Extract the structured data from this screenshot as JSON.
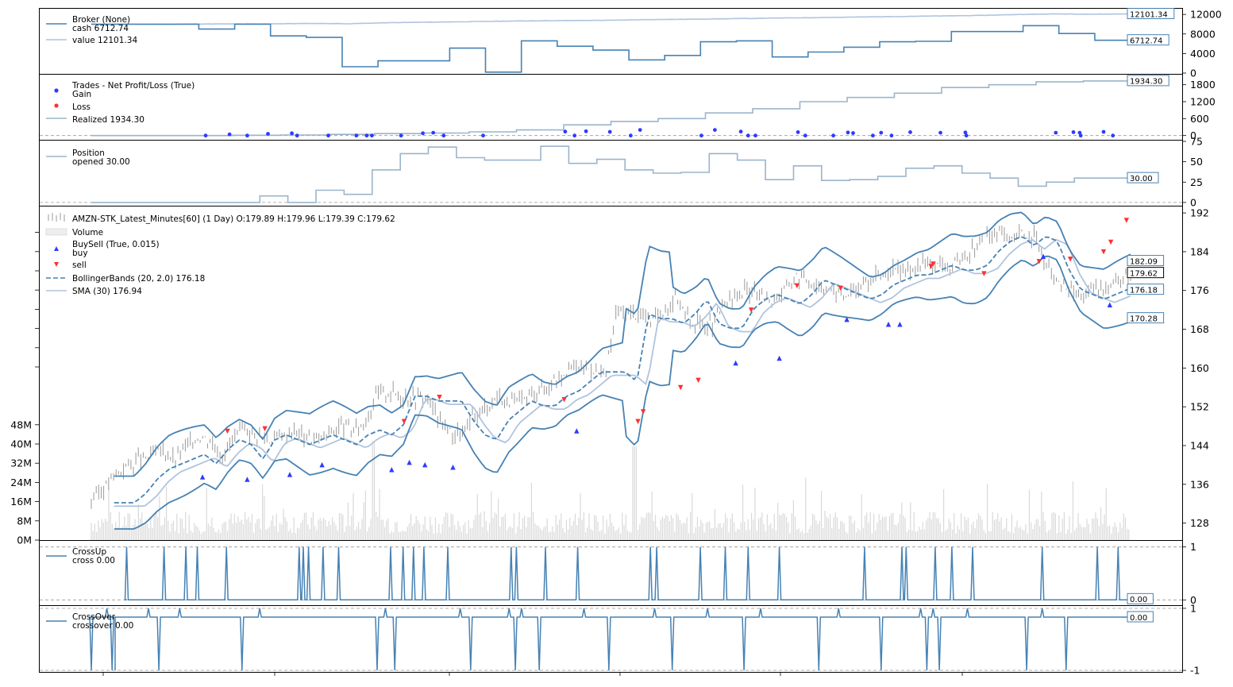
{
  "colors": {
    "cash": "#4682b4",
    "value": "#b0c4de",
    "realized": "#9ab5cc",
    "position": "#9ab5cc",
    "price": "#9a9a9a",
    "volume": "#d9d9d9",
    "bb": "#4682b4",
    "sma": "#b0c4de",
    "buy": "#2e3bff",
    "sell": "#ff3030",
    "gain": "#2e3bff",
    "loss": "#ff3030",
    "cross": "#4682b4",
    "zero_line": "#999999"
  },
  "chart_data": [
    {
      "id": "broker",
      "type": "line",
      "legend": [
        "Broker (None)",
        "cash 6712.74",
        "value 12101.34"
      ],
      "ylim": [
        0,
        13000
      ],
      "yticks": [
        "0",
        "4000",
        "8000",
        "12000"
      ],
      "ytick_values": [
        0,
        4000,
        8000,
        12000
      ],
      "last_labels": [
        "12101.34",
        "6712.74"
      ],
      "series": [
        {
          "name": "value",
          "values": [
            10000,
            10000,
            10000,
            10050,
            10050,
            10100,
            10150,
            10100,
            10300,
            10400,
            10500,
            10600,
            10700,
            10750,
            10800,
            10950,
            11000,
            11100,
            11200,
            11300,
            11400,
            11500,
            11600,
            11700,
            11800,
            12000,
            12100,
            12050,
            12101.34
          ]
        },
        {
          "name": "cash",
          "values": [
            10000,
            10000,
            10000,
            9000,
            10000,
            7600,
            7300,
            1300,
            2500,
            2500,
            5100,
            200,
            6600,
            5500,
            4700,
            2700,
            3600,
            6400,
            6600,
            3300,
            4300,
            5300,
            6400,
            6500,
            8500,
            8500,
            9700,
            8100,
            6712.74
          ]
        }
      ]
    },
    {
      "id": "trades",
      "type": "scatter",
      "legend": [
        "Trades - Net Profit/Loss (True)",
        "Gain",
        "Loss",
        "Realized 1934.30"
      ],
      "ylim": [
        -150,
        2100
      ],
      "yticks": [
        "0",
        "600",
        "1200",
        "1800"
      ],
      "ytick_values": [
        0,
        600,
        1200,
        1800
      ],
      "last_labels": [
        "1934.30"
      ],
      "realized": [
        0,
        0,
        0,
        10,
        20,
        40,
        70,
        90,
        130,
        200,
        380,
        500,
        600,
        800,
        950,
        1200,
        1350,
        1500,
        1700,
        1800,
        1900,
        1934.3
      ],
      "gain_points": [
        [
          0.133,
          40
        ],
        [
          0.17,
          60
        ],
        [
          0.193,
          80
        ],
        [
          0.319,
          80
        ],
        [
          0.329,
          100
        ],
        [
          0.456,
          140
        ],
        [
          0.476,
          150
        ],
        [
          0.499,
          130
        ],
        [
          0.528,
          200
        ],
        [
          0.6,
          200
        ],
        [
          0.625,
          140
        ],
        [
          0.68,
          120
        ],
        [
          0.728,
          110
        ],
        [
          0.733,
          90
        ],
        [
          0.76,
          100
        ],
        [
          0.788,
          120
        ],
        [
          0.817,
          100
        ],
        [
          0.841,
          110
        ],
        [
          0.928,
          100
        ],
        [
          0.945,
          120
        ],
        [
          0.951,
          100
        ],
        [
          0.974,
          130
        ]
      ],
      "loss_points": [
        [
          0.11,
          0
        ],
        [
          0.15,
          0
        ],
        [
          0.198,
          0
        ],
        [
          0.228,
          0
        ],
        [
          0.255,
          0
        ],
        [
          0.265,
          0
        ],
        [
          0.27,
          0
        ],
        [
          0.298,
          0
        ],
        [
          0.339,
          0
        ],
        [
          0.377,
          0
        ],
        [
          0.465,
          0
        ],
        [
          0.519,
          0
        ],
        [
          0.587,
          0
        ],
        [
          0.632,
          0
        ],
        [
          0.639,
          0
        ],
        [
          0.687,
          0
        ],
        [
          0.714,
          0
        ],
        [
          0.752,
          0
        ],
        [
          0.77,
          0
        ],
        [
          0.842,
          0
        ],
        [
          0.952,
          0
        ],
        [
          0.983,
          0
        ]
      ]
    },
    {
      "id": "position",
      "type": "line",
      "legend": [
        "Position",
        "opened 30.00"
      ],
      "ylim": [
        -3,
        75
      ],
      "yticks": [
        "0",
        "25",
        "50",
        "75"
      ],
      "ytick_values": [
        0,
        25,
        50,
        75
      ],
      "last_labels": [
        "30.00"
      ],
      "values": [
        0,
        0,
        0,
        0,
        0,
        0,
        8,
        0,
        15,
        10,
        40,
        60,
        68,
        55,
        52,
        52,
        69,
        48,
        53,
        40,
        36,
        37,
        60,
        52,
        28,
        45,
        27,
        28,
        32,
        42,
        45,
        36,
        30,
        20,
        25,
        30,
        30
      ]
    },
    {
      "id": "price",
      "type": "line",
      "legend": [
        "AMZN-STK_Latest_Minutes[60] (1 Day) O:179.89 H:179.96 L:179.39 C:179.62",
        "Volume",
        "BuySell (True, 0.015)",
        "buy",
        "sell",
        "BollingerBands (20, 2.0) 176.18",
        "SMA (30) 176.94"
      ],
      "ylim": [
        124.5,
        193
      ],
      "yticks": [
        "128",
        "136",
        "144",
        "152",
        "160",
        "168",
        "176",
        "184",
        "192"
      ],
      "ytick_values": [
        128,
        136,
        144,
        152,
        160,
        168,
        176,
        184,
        192
      ],
      "volume_ticks": [
        "0M",
        "8M",
        "16M",
        "24M",
        "32M",
        "40M",
        "48M"
      ],
      "last_labels": [
        "182.09",
        "179.62",
        "176.18",
        "170.28"
      ],
      "close": [
        133,
        135,
        138,
        140,
        141,
        142,
        143,
        141,
        144,
        146,
        145,
        142,
        146,
        147,
        146,
        145,
        146,
        147,
        146,
        145,
        147,
        148,
        147,
        149,
        155,
        155,
        154,
        154,
        154,
        150,
        147,
        146,
        150,
        152,
        154,
        153,
        153,
        155,
        156,
        158,
        160,
        160,
        160,
        158,
        172,
        171,
        171,
        170,
        172,
        175,
        170,
        169,
        169,
        173,
        175,
        176,
        175,
        174,
        176,
        179,
        178,
        177,
        176,
        175,
        176,
        178,
        179,
        180,
        180,
        181,
        182,
        181,
        181,
        182,
        185,
        187,
        188,
        186,
        188,
        187,
        181,
        177,
        176,
        175,
        176,
        177,
        178,
        179.62
      ],
      "buy": [
        [
          0.107,
          137.5
        ],
        [
          0.15,
          137
        ],
        [
          0.191,
          138
        ],
        [
          0.222,
          140
        ],
        [
          0.289,
          139
        ],
        [
          0.306,
          140.5
        ],
        [
          0.321,
          140
        ],
        [
          0.348,
          139.5
        ],
        [
          0.467,
          147
        ],
        [
          0.62,
          161
        ],
        [
          0.662,
          162
        ],
        [
          0.727,
          170
        ],
        [
          0.767,
          169
        ],
        [
          0.778,
          169
        ],
        [
          0.916,
          183
        ],
        [
          0.98,
          173
        ]
      ],
      "sell": [
        [
          0.131,
          147
        ],
        [
          0.167,
          147.5
        ],
        [
          0.301,
          149
        ],
        [
          0.335,
          154
        ],
        [
          0.455,
          153.5
        ],
        [
          0.526,
          149
        ],
        [
          0.531,
          151
        ],
        [
          0.567,
          156
        ],
        [
          0.584,
          157.5
        ],
        [
          0.635,
          172
        ],
        [
          0.679,
          177
        ],
        [
          0.721,
          176.5
        ],
        [
          0.808,
          181
        ],
        [
          0.81,
          181.5
        ],
        [
          0.859,
          179.5
        ],
        [
          0.912,
          182
        ],
        [
          0.942,
          182.5
        ],
        [
          0.974,
          184
        ],
        [
          0.981,
          186
        ],
        [
          0.996,
          190.5
        ]
      ]
    },
    {
      "id": "crossup",
      "type": "line",
      "legend": [
        "CrossUp",
        "cross 0.00"
      ],
      "ylim": [
        -0.1,
        1.1
      ],
      "yticks": [
        "0",
        "1"
      ],
      "ytick_values": [
        0,
        1
      ],
      "last_labels": [
        "0.00"
      ],
      "spikes": [
        0.034,
        0.07,
        0.091,
        0.102,
        0.13,
        0.2,
        0.204,
        0.209,
        0.223,
        0.238,
        0.288,
        0.3,
        0.31,
        0.32,
        0.343,
        0.404,
        0.409,
        0.437,
        0.468,
        0.538,
        0.544,
        0.586,
        0.61,
        0.632,
        0.662,
        0.744,
        0.78,
        0.784,
        0.812,
        0.828,
        0.848,
        0.915,
        0.968,
        0.988
      ]
    },
    {
      "id": "crossover",
      "type": "line",
      "legend": [
        "CrossOver",
        "crossover 0.00"
      ],
      "ylim": [
        -1.05,
        1.05
      ],
      "yticks": [
        "-1",
        "1"
      ],
      "ytick_values": [
        -1,
        1
      ],
      "last_labels": [
        "0.00"
      ],
      "events": [
        [
          0.0,
          -1
        ],
        [
          0.015,
          1
        ],
        [
          0.02,
          -1
        ],
        [
          0.055,
          1
        ],
        [
          0.065,
          -1
        ],
        [
          0.085,
          1
        ],
        [
          0.145,
          -1
        ],
        [
          0.162,
          1
        ],
        [
          0.275,
          -1
        ],
        [
          0.283,
          1
        ],
        [
          0.292,
          -1
        ],
        [
          0.355,
          1
        ],
        [
          0.365,
          -1
        ],
        [
          0.402,
          1
        ],
        [
          0.408,
          -1
        ],
        [
          0.414,
          1
        ],
        [
          0.431,
          -1
        ],
        [
          0.474,
          1
        ],
        [
          0.498,
          -1
        ],
        [
          0.542,
          1
        ],
        [
          0.559,
          -1
        ],
        [
          0.593,
          1
        ],
        [
          0.628,
          -1
        ],
        [
          0.644,
          1
        ],
        [
          0.7,
          -1
        ],
        [
          0.719,
          1
        ],
        [
          0.76,
          -1
        ],
        [
          0.798,
          1
        ],
        [
          0.804,
          -1
        ],
        [
          0.81,
          1
        ],
        [
          0.816,
          -1
        ],
        [
          0.843,
          1
        ],
        [
          0.9,
          -1
        ],
        [
          0.915,
          1
        ],
        [
          0.938,
          -1
        ]
      ]
    }
  ]
}
